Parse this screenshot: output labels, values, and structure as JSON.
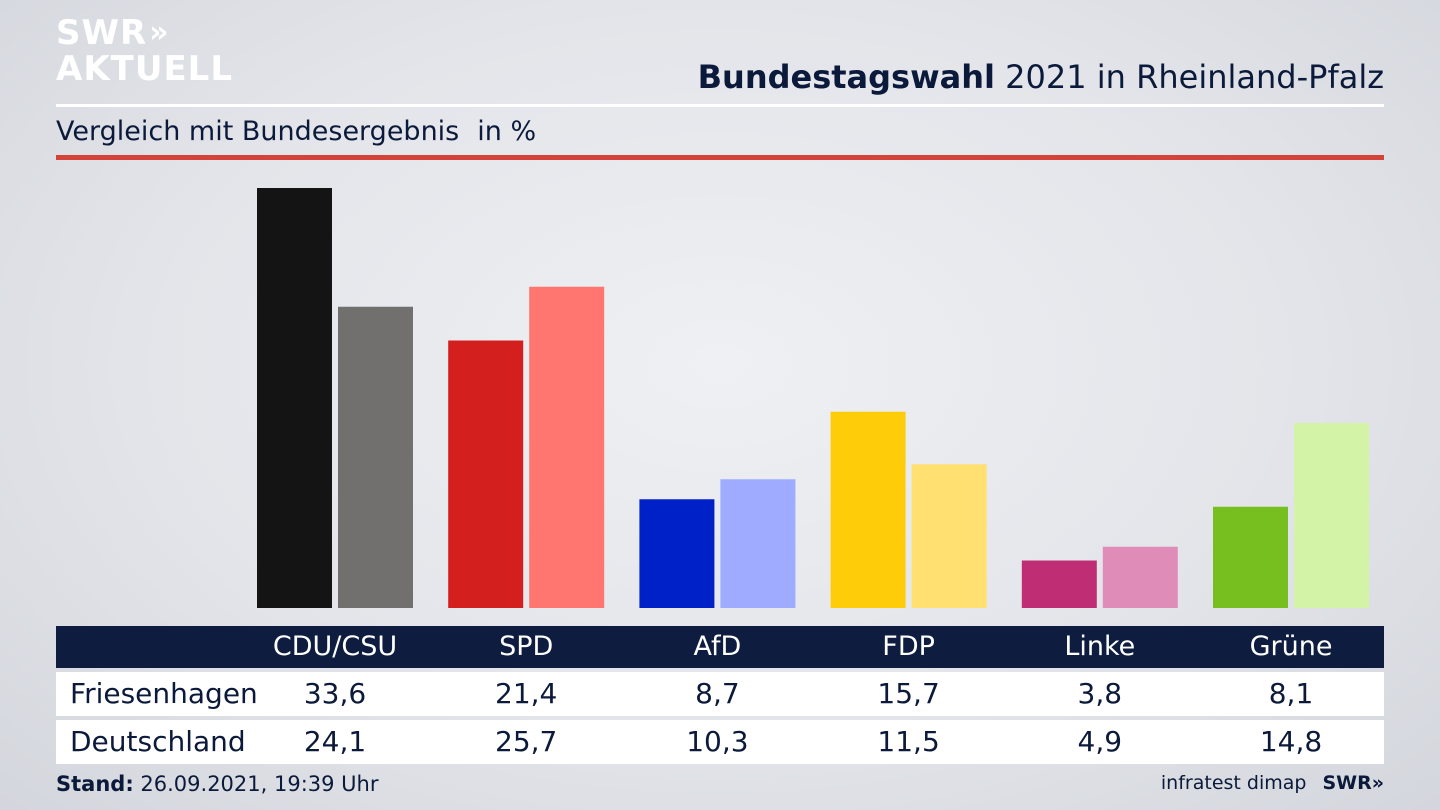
{
  "logo": {
    "line1": "SWR",
    "line2": "AKTUELL",
    "chevrons": "»"
  },
  "header": {
    "title_bold": "Bundestagswahl",
    "title_rest": " 2021 in Rheinland-Pfalz",
    "subtitle": "Vergleich mit Bundesergebnis",
    "unit": "in %"
  },
  "footer": {
    "stand_label": "Stand:",
    "stand_value": " 26.09.2021, 19:39 Uhr",
    "source": "infratest dimap",
    "brand": "SWR»"
  },
  "chart_data": {
    "type": "bar",
    "categories": [
      "CDU/CSU",
      "SPD",
      "AfD",
      "FDP",
      "Linke",
      "Grüne"
    ],
    "series": [
      {
        "name": "Friesenhagen",
        "values": [
          33.6,
          21.4,
          8.7,
          15.7,
          3.8,
          8.1
        ]
      },
      {
        "name": "Deutschland",
        "values": [
          24.1,
          25.7,
          10.3,
          11.5,
          4.9,
          14.8
        ]
      }
    ],
    "display_values": [
      [
        "33,6",
        "21,4",
        "8,7",
        "15,7",
        "3,8",
        "8,1"
      ],
      [
        "24,1",
        "25,7",
        "10,3",
        "11,5",
        "4,9",
        "14,8"
      ]
    ],
    "colors": [
      [
        "#141414",
        "#d41f1f",
        "#0021c8",
        "#ffcc0a",
        "#bf2d74",
        "#77bf1e"
      ],
      [
        "#72706e",
        "#ff7570",
        "#9eabff",
        "#ffe070",
        "#e08cb8",
        "#d3f4a6"
      ]
    ],
    "ylim": [
      0,
      33.6
    ],
    "grid": false,
    "legend": "table-below"
  }
}
